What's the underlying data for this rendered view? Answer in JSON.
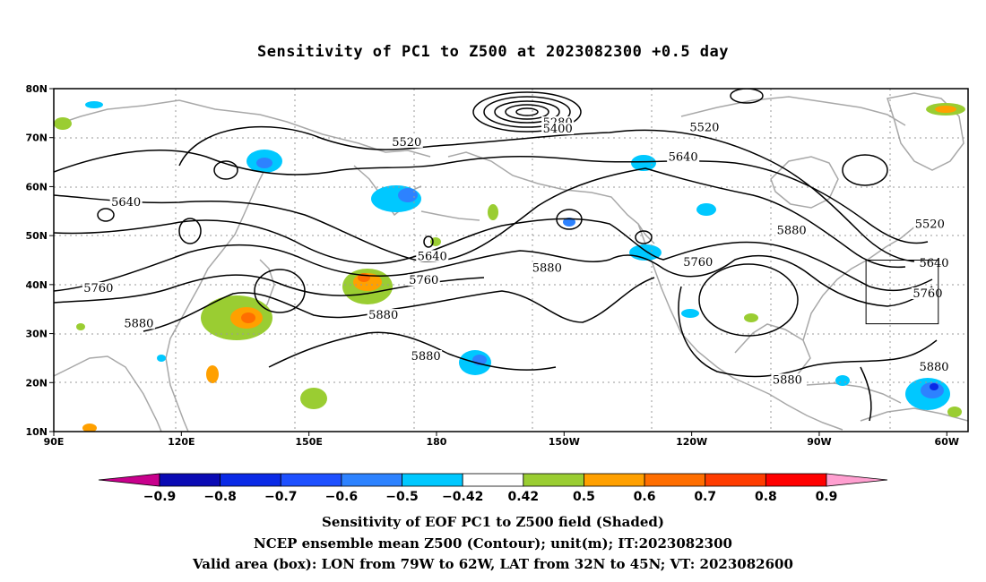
{
  "title": "Sensitivity of PC1 to Z500 at 2023082300 +0.5 day",
  "map": {
    "lat_range": [
      10,
      80
    ],
    "lon_range": [
      90,
      305
    ],
    "lat_ticks": [
      {
        "value": 80,
        "label": "80N"
      },
      {
        "value": 70,
        "label": "70N"
      },
      {
        "value": 60,
        "label": "60N"
      },
      {
        "value": 50,
        "label": "50N"
      },
      {
        "value": 40,
        "label": "40N"
      },
      {
        "value": 30,
        "label": "30N"
      },
      {
        "value": 20,
        "label": "20N"
      },
      {
        "value": 10,
        "label": "10N"
      }
    ],
    "lon_ticks": [
      {
        "value": 90,
        "label": "90E"
      },
      {
        "value": 120,
        "label": "120E"
      },
      {
        "value": 150,
        "label": "150E"
      },
      {
        "value": 180,
        "label": "180"
      },
      {
        "value": 210,
        "label": "150W"
      },
      {
        "value": 240,
        "label": "120W"
      },
      {
        "value": 270,
        "label": "90W"
      },
      {
        "value": 300,
        "label": "60W"
      }
    ],
    "contour_labels": [
      {
        "text": "5280",
        "lon": 208.5,
        "lat": 72.5
      },
      {
        "text": "5400",
        "lon": 208.5,
        "lat": 71.2
      },
      {
        "text": "5520",
        "lon": 173,
        "lat": 68.5
      },
      {
        "text": "5520",
        "lon": 243,
        "lat": 71.5
      },
      {
        "text": "5640",
        "lon": 238,
        "lat": 65.5
      },
      {
        "text": "5640",
        "lon": 107,
        "lat": 56.2
      },
      {
        "text": "5640",
        "lon": 179,
        "lat": 45.2
      },
      {
        "text": "5640",
        "lon": 297,
        "lat": 43.8
      },
      {
        "text": "5520",
        "lon": 296,
        "lat": 51.8
      },
      {
        "text": "5760",
        "lon": 100.5,
        "lat": 38.7
      },
      {
        "text": "5760",
        "lon": 177,
        "lat": 40.3
      },
      {
        "text": "5760",
        "lon": 241.5,
        "lat": 44
      },
      {
        "text": "5760",
        "lon": 295.5,
        "lat": 37.6
      },
      {
        "text": "5880",
        "lon": 110,
        "lat": 31.5
      },
      {
        "text": "5880",
        "lon": 167.5,
        "lat": 33.2
      },
      {
        "text": "5880",
        "lon": 177.5,
        "lat": 24.8
      },
      {
        "text": "5880",
        "lon": 206,
        "lat": 42.8
      },
      {
        "text": "5880",
        "lon": 263.5,
        "lat": 50.5
      },
      {
        "text": "5880",
        "lon": 262.5,
        "lat": 20
      },
      {
        "text": "5880",
        "lon": 297,
        "lat": 22.6
      }
    ],
    "valid_box": {
      "lon_min": 281,
      "lon_max": 298,
      "lat_min": 32,
      "lat_max": 45
    }
  },
  "colorbar": {
    "colors": [
      "#c8008c",
      "#0a0ab4",
      "#0a2ae6",
      "#1e50ff",
      "#2d82ff",
      "#00c8ff",
      "#ffffff",
      "#9acd32",
      "#ffa000",
      "#ff6e00",
      "#ff3c00",
      "#ff0000",
      "#ff9fd0"
    ],
    "labels": [
      "-0.9",
      "-0.8",
      "-0.7",
      "-0.6",
      "-0.5",
      "-0.42",
      "0.42",
      "0.5",
      "0.6",
      "0.7",
      "0.8",
      "0.9"
    ]
  },
  "caption": {
    "line1": "Sensitivity of EOF PC1 to Z500 field (Shaded)",
    "line2": "NCEP ensemble mean Z500 (Contour); unit(m); IT:2023082300",
    "line3": "Valid area (box): LON from 79W to 62W, LAT from 32N to 45N; VT: 2023082600"
  }
}
